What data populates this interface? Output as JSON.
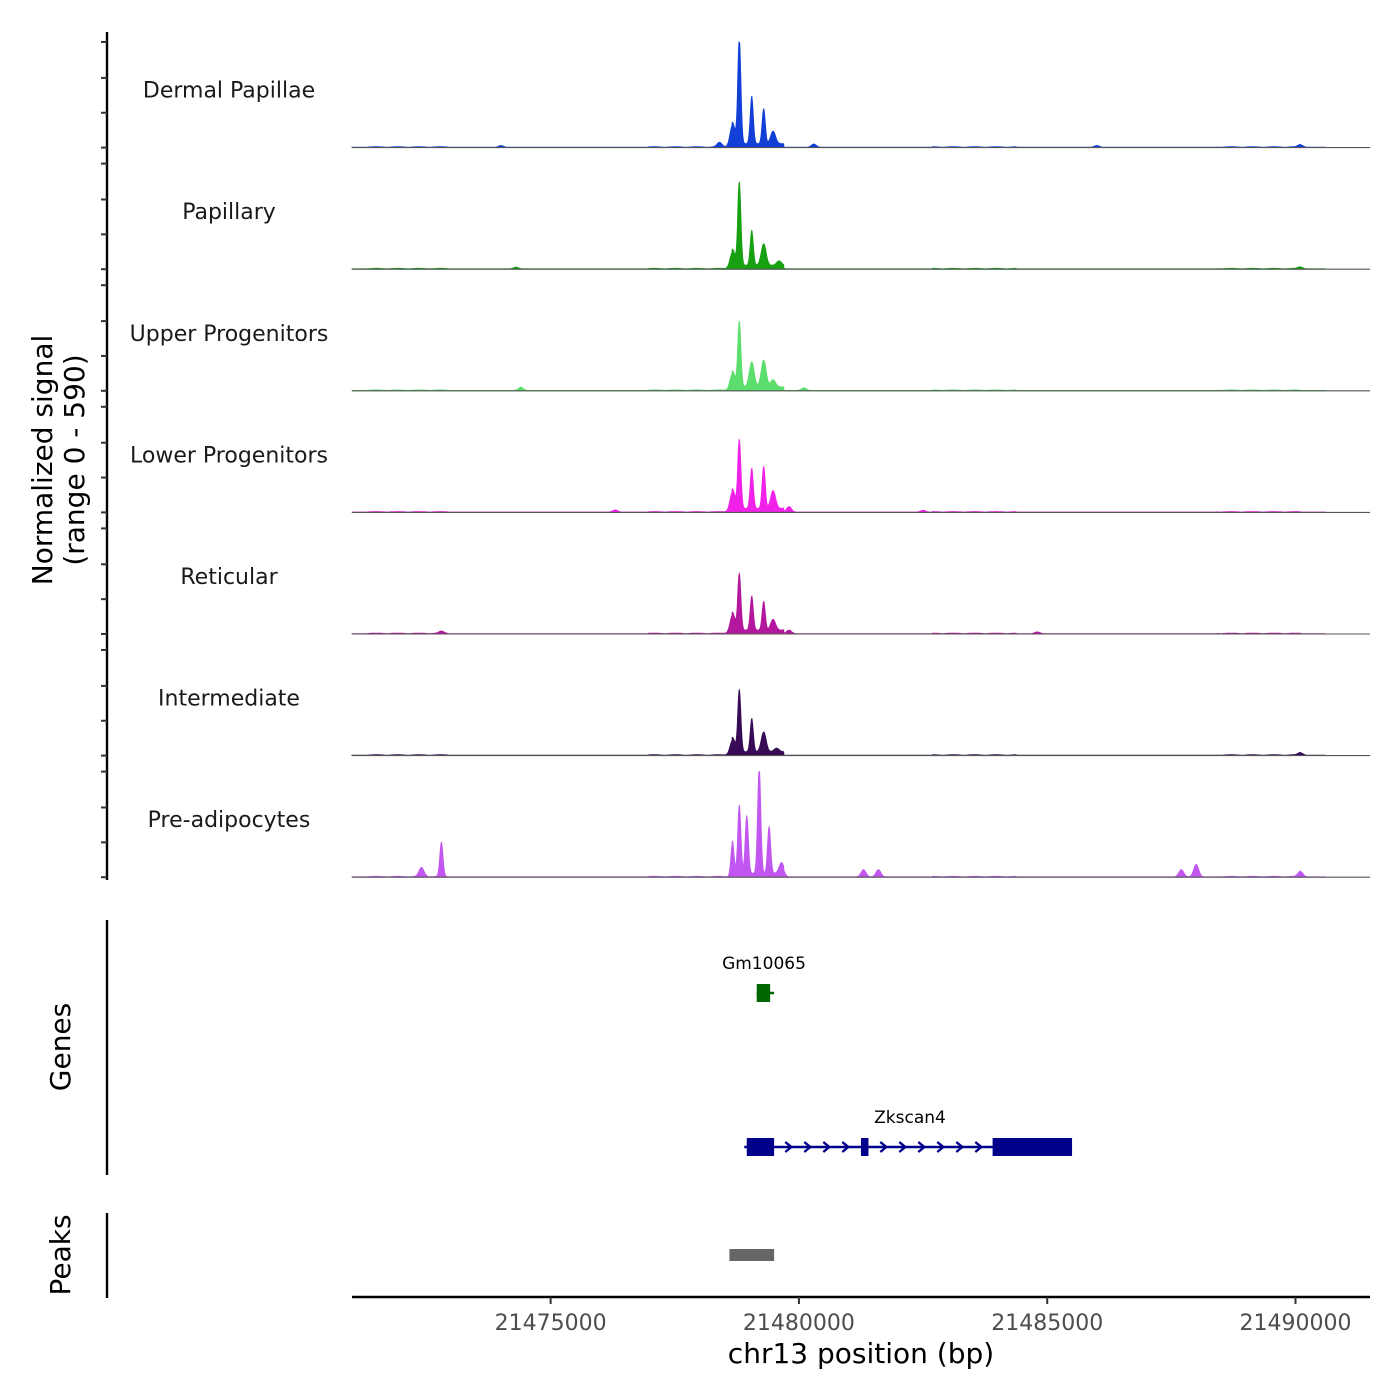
{
  "chart_data": {
    "type": "area",
    "title": "",
    "chromosome": "chr13",
    "xlabel": "chr13 position (bp)",
    "ylabel_line1": "Normalized signal",
    "ylabel_line2": "(range 0 - 590)",
    "xlim": [
      21471000,
      21491500
    ],
    "ylim": [
      0,
      590
    ],
    "xticks": [
      21475000,
      21480000,
      21485000,
      21490000
    ],
    "xtick_labels": [
      "21475000",
      "21480000",
      "21485000",
      "21490000"
    ],
    "tracks": [
      {
        "name": "Dermal Papillae",
        "color": "#1240d6",
        "peaks": [
          [
            21478800,
            590
          ],
          [
            21479050,
            265
          ],
          [
            21479290,
            195
          ],
          [
            21478660,
            120
          ],
          [
            21479480,
            70
          ],
          [
            21478400,
            25
          ],
          [
            21480300,
            18
          ],
          [
            21474000,
            10
          ],
          [
            21486000,
            10
          ],
          [
            21490100,
            14
          ]
        ]
      },
      {
        "name": "Papillary",
        "color": "#16a012",
        "peaks": [
          [
            21478800,
            465
          ],
          [
            21479050,
            195
          ],
          [
            21479290,
            120
          ],
          [
            21478660,
            90
          ],
          [
            21479600,
            25
          ],
          [
            21474300,
            10
          ],
          [
            21490100,
            10
          ]
        ]
      },
      {
        "name": "Upper Progenitors",
        "color": "#5cde6c",
        "peaks": [
          [
            21478800,
            365
          ],
          [
            21479050,
            140
          ],
          [
            21479290,
            150
          ],
          [
            21478660,
            90
          ],
          [
            21479480,
            40
          ],
          [
            21480100,
            15
          ],
          [
            21474400,
            18
          ]
        ]
      },
      {
        "name": "Lower Progenitors",
        "color": "#f021e8",
        "peaks": [
          [
            21478800,
            385
          ],
          [
            21479050,
            225
          ],
          [
            21479290,
            235
          ],
          [
            21478660,
            110
          ],
          [
            21479480,
            100
          ],
          [
            21479800,
            30
          ],
          [
            21476300,
            12
          ],
          [
            21482500,
            10
          ]
        ]
      },
      {
        "name": "Reticular",
        "color": "#b3179d",
        "peaks": [
          [
            21478800,
            315
          ],
          [
            21479050,
            190
          ],
          [
            21479290,
            160
          ],
          [
            21478660,
            100
          ],
          [
            21479480,
            60
          ],
          [
            21479800,
            20
          ],
          [
            21472800,
            12
          ],
          [
            21484800,
            10
          ]
        ]
      },
      {
        "name": "Intermediate",
        "color": "#380b57",
        "peaks": [
          [
            21478800,
            345
          ],
          [
            21479050,
            185
          ],
          [
            21479290,
            110
          ],
          [
            21478660,
            80
          ],
          [
            21479550,
            20
          ],
          [
            21490100,
            14
          ]
        ]
      },
      {
        "name": "Pre-adipocytes",
        "color": "#c256f0",
        "peaks": [
          [
            21479200,
            590
          ],
          [
            21478800,
            380
          ],
          [
            21478950,
            320
          ],
          [
            21479400,
            260
          ],
          [
            21478660,
            180
          ],
          [
            21472800,
            190
          ],
          [
            21472400,
            50
          ],
          [
            21488000,
            70
          ],
          [
            21487700,
            40
          ],
          [
            21479650,
            60
          ],
          [
            21481300,
            40
          ],
          [
            21481600,
            40
          ],
          [
            21490100,
            30
          ]
        ]
      }
    ],
    "genes": [
      {
        "name": "Gm10065",
        "color": "#006400",
        "start": 21479150,
        "end": 21479500,
        "strand": "-",
        "exons": [
          [
            21479150,
            21479420
          ]
        ]
      },
      {
        "name": "Zkscan4",
        "color": "#00008b",
        "start": 21478900,
        "end": 21485500,
        "strand": "+",
        "exons": [
          [
            21478950,
            21479500
          ],
          [
            21481250,
            21481400
          ],
          [
            21483900,
            21485500
          ]
        ]
      }
    ],
    "peaks_track": {
      "label": "Peaks",
      "color": "#666666",
      "regions": [
        [
          21478600,
          21479500
        ]
      ]
    },
    "genes_track_label": "Genes"
  }
}
